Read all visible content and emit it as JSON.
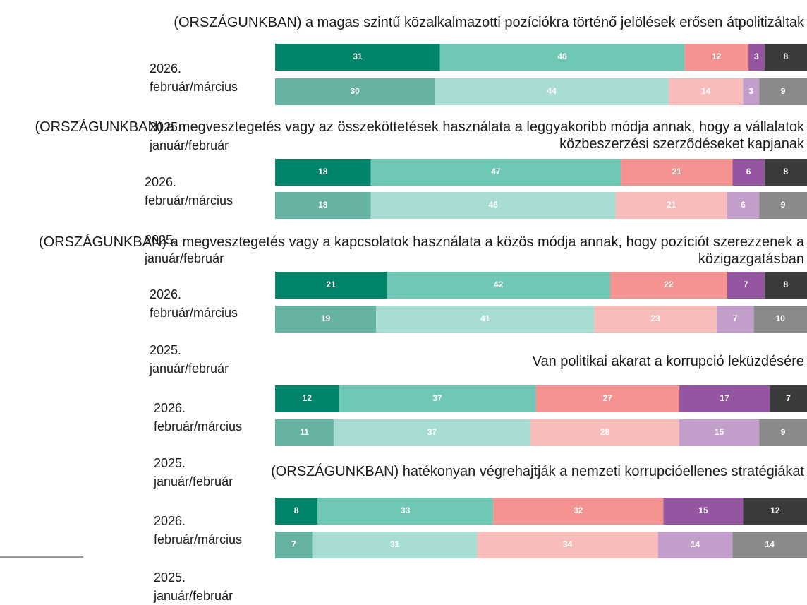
{
  "chart_data": [
    {
      "type": "stacked-bar",
      "title": "(ORSZÁGUNKBAN) a magas szintű közalkalmazotti pozíciókra történő jelölések erősen átpolitizáltak",
      "categories": [
        "2026. február/március",
        "2025. január/február"
      ],
      "values": [
        [
          31,
          46,
          12,
          3,
          8
        ],
        [
          30,
          44,
          14,
          3,
          9
        ]
      ],
      "colors": [
        [
          "#00856a",
          "#6fc8b6",
          "#f4938f",
          "#9456a0",
          "#3b3b3e"
        ],
        [
          "#66b3a3",
          "#a8ddd3",
          "#f8bcbb",
          "#c29ecb",
          "#8a8a8c"
        ]
      ],
      "xlim": [
        0,
        100
      ]
    },
    {
      "type": "stacked-bar",
      "title": "(ORSZÁGUNKBAN) a megvesztegetés vagy az összeköttetések használata a leggyakoribb módja annak, hogy a vállalatok közbeszerzési szerződéseket kapjanak",
      "categories": [
        "2026. február/március",
        "2025. január/február"
      ],
      "values": [
        [
          18,
          47,
          21,
          6,
          8
        ],
        [
          18,
          46,
          21,
          6,
          9
        ]
      ],
      "colors": [
        [
          "#00856a",
          "#6fc8b6",
          "#f4938f",
          "#9456a0",
          "#3b3b3e"
        ],
        [
          "#66b3a3",
          "#a8ddd3",
          "#f8bcbb",
          "#c29ecb",
          "#8a8a8c"
        ]
      ],
      "xlim": [
        0,
        100
      ]
    },
    {
      "type": "stacked-bar",
      "title": "(ORSZÁGUNKBAN) a megvesztegetés vagy a kapcsolatok használata a közös módja annak, hogy pozíciót szerezzenek a közigazgatásban",
      "categories": [
        "2026. február/március",
        "2025. január/február"
      ],
      "values": [
        [
          21,
          42,
          22,
          7,
          8
        ],
        [
          19,
          41,
          23,
          7,
          10
        ]
      ],
      "colors": [
        [
          "#00856a",
          "#6fc8b6",
          "#f4938f",
          "#9456a0",
          "#3b3b3e"
        ],
        [
          "#66b3a3",
          "#a8ddd3",
          "#f8bcbb",
          "#c29ecb",
          "#8a8a8c"
        ]
      ],
      "xlim": [
        0,
        100
      ]
    },
    {
      "type": "stacked-bar",
      "title": "Van politikai akarat a korrupció leküzdésére",
      "categories": [
        "2026. február/március",
        "2025. január/február"
      ],
      "values": [
        [
          12,
          37,
          27,
          17,
          7
        ],
        [
          11,
          37,
          28,
          15,
          9
        ]
      ],
      "colors": [
        [
          "#00856a",
          "#6fc8b6",
          "#f4938f",
          "#9456a0",
          "#3b3b3e"
        ],
        [
          "#66b3a3",
          "#a8ddd3",
          "#f8bcbb",
          "#c29ecb",
          "#8a8a8c"
        ]
      ],
      "xlim": [
        0,
        100
      ]
    },
    {
      "type": "stacked-bar",
      "title": "(ORSZÁGUNKBAN) hatékonyan végrehajtják a nemzeti korrupcióellenes stratégiákat",
      "categories": [
        "2026. február/március",
        "2025. január/február"
      ],
      "values": [
        [
          8,
          33,
          32,
          15,
          12
        ],
        [
          7,
          31,
          34,
          14,
          14
        ]
      ],
      "colors": [
        [
          "#00856a",
          "#6fc8b6",
          "#f4938f",
          "#9456a0",
          "#3b3b3e"
        ],
        [
          "#66b3a3",
          "#a8ddd3",
          "#f8bcbb",
          "#c29ecb",
          "#8a8a8c"
        ]
      ],
      "xlim": [
        0,
        100
      ]
    }
  ]
}
